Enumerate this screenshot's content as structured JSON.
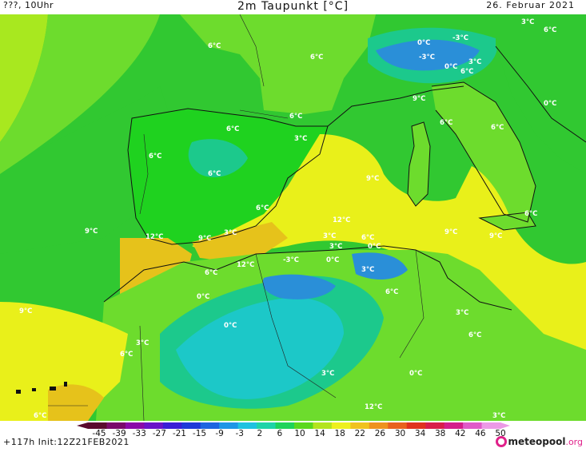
{
  "header": {
    "left": "???, 10Uhr",
    "title": "2m Taupunkt [°C]",
    "date": "26. Februar 2021"
  },
  "map": {
    "region": "Western Mediterranean / Iberia / North Africa",
    "colors": {
      "sea_green": "#31c831",
      "light_green": "#6ddc2d",
      "yellow_green": "#a8e81f",
      "yellow": "#e9f01a",
      "gold": "#e6c21b",
      "bright_green": "#1fd21f",
      "teal": "#1cc98c",
      "cyan": "#1cc8c8",
      "blue": "#2a8fd8",
      "outline": "#111111"
    },
    "labels": [
      {
        "text": "6°C"
      },
      {
        "text": "6°C"
      },
      {
        "text": "0°C"
      },
      {
        "text": "-3°C"
      },
      {
        "text": "3°C"
      },
      {
        "text": "6°C"
      },
      {
        "text": "-3°C"
      },
      {
        "text": "0°C"
      },
      {
        "text": "3°C"
      },
      {
        "text": "6°C"
      },
      {
        "text": "9°C"
      },
      {
        "text": "0°C"
      },
      {
        "text": "6°C"
      },
      {
        "text": "6°C"
      },
      {
        "text": "6°C"
      },
      {
        "text": "3°C"
      },
      {
        "text": "6°C"
      },
      {
        "text": "6°C"
      },
      {
        "text": "9°C"
      },
      {
        "text": "6°C"
      },
      {
        "text": "6°C"
      },
      {
        "text": "12°C"
      },
      {
        "text": "6°C"
      },
      {
        "text": "9°C"
      },
      {
        "text": "12°C"
      },
      {
        "text": "9°C"
      },
      {
        "text": "3°C"
      },
      {
        "text": "3°C"
      },
      {
        "text": "6°C"
      },
      {
        "text": "9°C"
      },
      {
        "text": "9°C"
      },
      {
        "text": "3°C"
      },
      {
        "text": "0°C"
      },
      {
        "text": "12°C"
      },
      {
        "text": "-3°C"
      },
      {
        "text": "0°C"
      },
      {
        "text": "3°C"
      },
      {
        "text": "6°C"
      },
      {
        "text": "6°C"
      },
      {
        "text": "0°C"
      },
      {
        "text": "9°C"
      },
      {
        "text": "0°C"
      },
      {
        "text": "3°C"
      },
      {
        "text": "6°C"
      },
      {
        "text": "3°C"
      },
      {
        "text": "6°C"
      },
      {
        "text": "3°C"
      },
      {
        "text": "0°C"
      },
      {
        "text": "12°C"
      },
      {
        "text": "6°C"
      },
      {
        "text": "3°C"
      }
    ]
  },
  "colorbar": {
    "ticks": [
      "-45",
      "-39",
      "-33",
      "-27",
      "-21",
      "-15",
      "-9",
      "-3",
      "2",
      "6",
      "10",
      "14",
      "18",
      "22",
      "26",
      "30",
      "34",
      "38",
      "42",
      "46",
      "50"
    ],
    "colors": [
      "#5a0a2e",
      "#7a0a6a",
      "#8a0aa8",
      "#6a14c8",
      "#3a1ed6",
      "#1e3ad8",
      "#1e66e0",
      "#1e96e6",
      "#1ec2e0",
      "#1ed4a8",
      "#1ed45a",
      "#5ad81e",
      "#b4e41e",
      "#eef01e",
      "#f0c21e",
      "#ee921e",
      "#e8621e",
      "#e0321e",
      "#d81e4a",
      "#d41e8a",
      "#e05ac8",
      "#ec9ae6"
    ]
  },
  "footer": {
    "run": "+117h Init:12Z21FEB2021",
    "logo": "meteopool",
    "logo_domain": ".org"
  }
}
